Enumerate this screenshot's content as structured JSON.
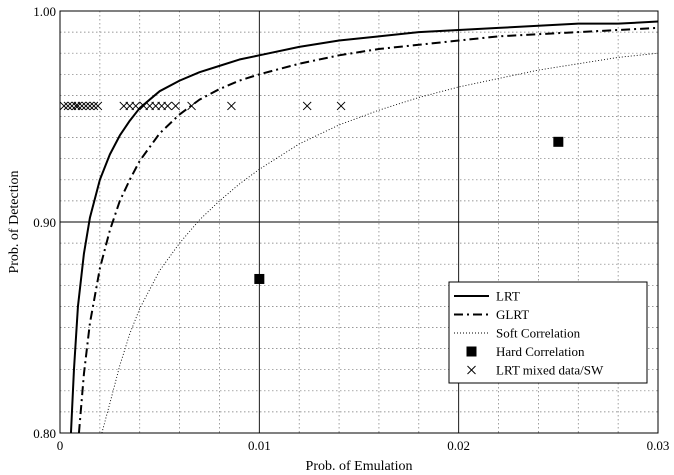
{
  "chart_data": {
    "type": "line",
    "title": "",
    "xlabel": "Prob. of Emulation",
    "ylabel": "Prob. of Detection",
    "xlim": [
      0,
      0.03
    ],
    "ylim": [
      0.8,
      1.0
    ],
    "x_major_ticks": [
      0,
      0.01,
      0.02,
      0.03
    ],
    "x_tick_labels": [
      "0",
      "0.01",
      "0.02",
      "0.03"
    ],
    "y_major_ticks": [
      0.8,
      0.9,
      1.0
    ],
    "y_tick_labels": [
      "0.80",
      "0.90",
      "1.00"
    ],
    "grid": true,
    "legend_position": "bottom-right",
    "series": [
      {
        "name": "LRT",
        "style": "solid",
        "x": [
          0.00055,
          0.0007,
          0.0009,
          0.0012,
          0.0015,
          0.002,
          0.0025,
          0.003,
          0.0035,
          0.004,
          0.005,
          0.006,
          0.007,
          0.008,
          0.009,
          0.01,
          0.012,
          0.014,
          0.016,
          0.018,
          0.02,
          0.022,
          0.024,
          0.026,
          0.028,
          0.03
        ],
        "y": [
          0.8,
          0.83,
          0.86,
          0.885,
          0.902,
          0.92,
          0.932,
          0.941,
          0.948,
          0.954,
          0.962,
          0.967,
          0.971,
          0.974,
          0.977,
          0.979,
          0.983,
          0.986,
          0.988,
          0.99,
          0.991,
          0.992,
          0.993,
          0.994,
          0.994,
          0.995
        ]
      },
      {
        "name": "GLRT",
        "style": "dashdot",
        "x": [
          0.00095,
          0.0012,
          0.0015,
          0.002,
          0.0025,
          0.003,
          0.0035,
          0.004,
          0.005,
          0.006,
          0.007,
          0.008,
          0.009,
          0.01,
          0.012,
          0.014,
          0.016,
          0.018,
          0.02,
          0.022,
          0.024,
          0.026,
          0.028,
          0.03
        ],
        "y": [
          0.8,
          0.828,
          0.852,
          0.878,
          0.896,
          0.91,
          0.92,
          0.929,
          0.942,
          0.951,
          0.958,
          0.963,
          0.967,
          0.97,
          0.975,
          0.979,
          0.982,
          0.984,
          0.986,
          0.988,
          0.989,
          0.99,
          0.991,
          0.992
        ]
      },
      {
        "name": "Soft Correlation",
        "style": "dotted",
        "x": [
          0.0021,
          0.0025,
          0.003,
          0.0035,
          0.004,
          0.005,
          0.006,
          0.007,
          0.008,
          0.009,
          0.01,
          0.012,
          0.014,
          0.016,
          0.018,
          0.02,
          0.022,
          0.024,
          0.026,
          0.028,
          0.03
        ],
        "y": [
          0.8,
          0.814,
          0.832,
          0.847,
          0.859,
          0.877,
          0.89,
          0.901,
          0.91,
          0.918,
          0.925,
          0.937,
          0.946,
          0.953,
          0.959,
          0.964,
          0.968,
          0.972,
          0.975,
          0.978,
          0.98
        ]
      },
      {
        "name": "Hard Correlation",
        "style": "marker-square",
        "x": [
          0.01,
          0.025
        ],
        "y": [
          0.873,
          0.938
        ]
      },
      {
        "name": "LRT mixed data/SW",
        "style": "marker-x",
        "x": [
          0.0002,
          0.0004,
          0.0006,
          0.0008,
          0.0009,
          0.0011,
          0.0013,
          0.0015,
          0.0017,
          0.0019,
          0.0032,
          0.0035,
          0.0038,
          0.0042,
          0.0045,
          0.0048,
          0.0051,
          0.0054,
          0.0058,
          0.0066,
          0.0086,
          0.0124,
          0.0141
        ],
        "y": [
          0.955,
          0.955,
          0.955,
          0.955,
          0.955,
          0.955,
          0.955,
          0.955,
          0.955,
          0.955,
          0.955,
          0.955,
          0.955,
          0.955,
          0.955,
          0.955,
          0.955,
          0.955,
          0.955,
          0.955,
          0.955,
          0.955,
          0.955
        ]
      }
    ]
  }
}
